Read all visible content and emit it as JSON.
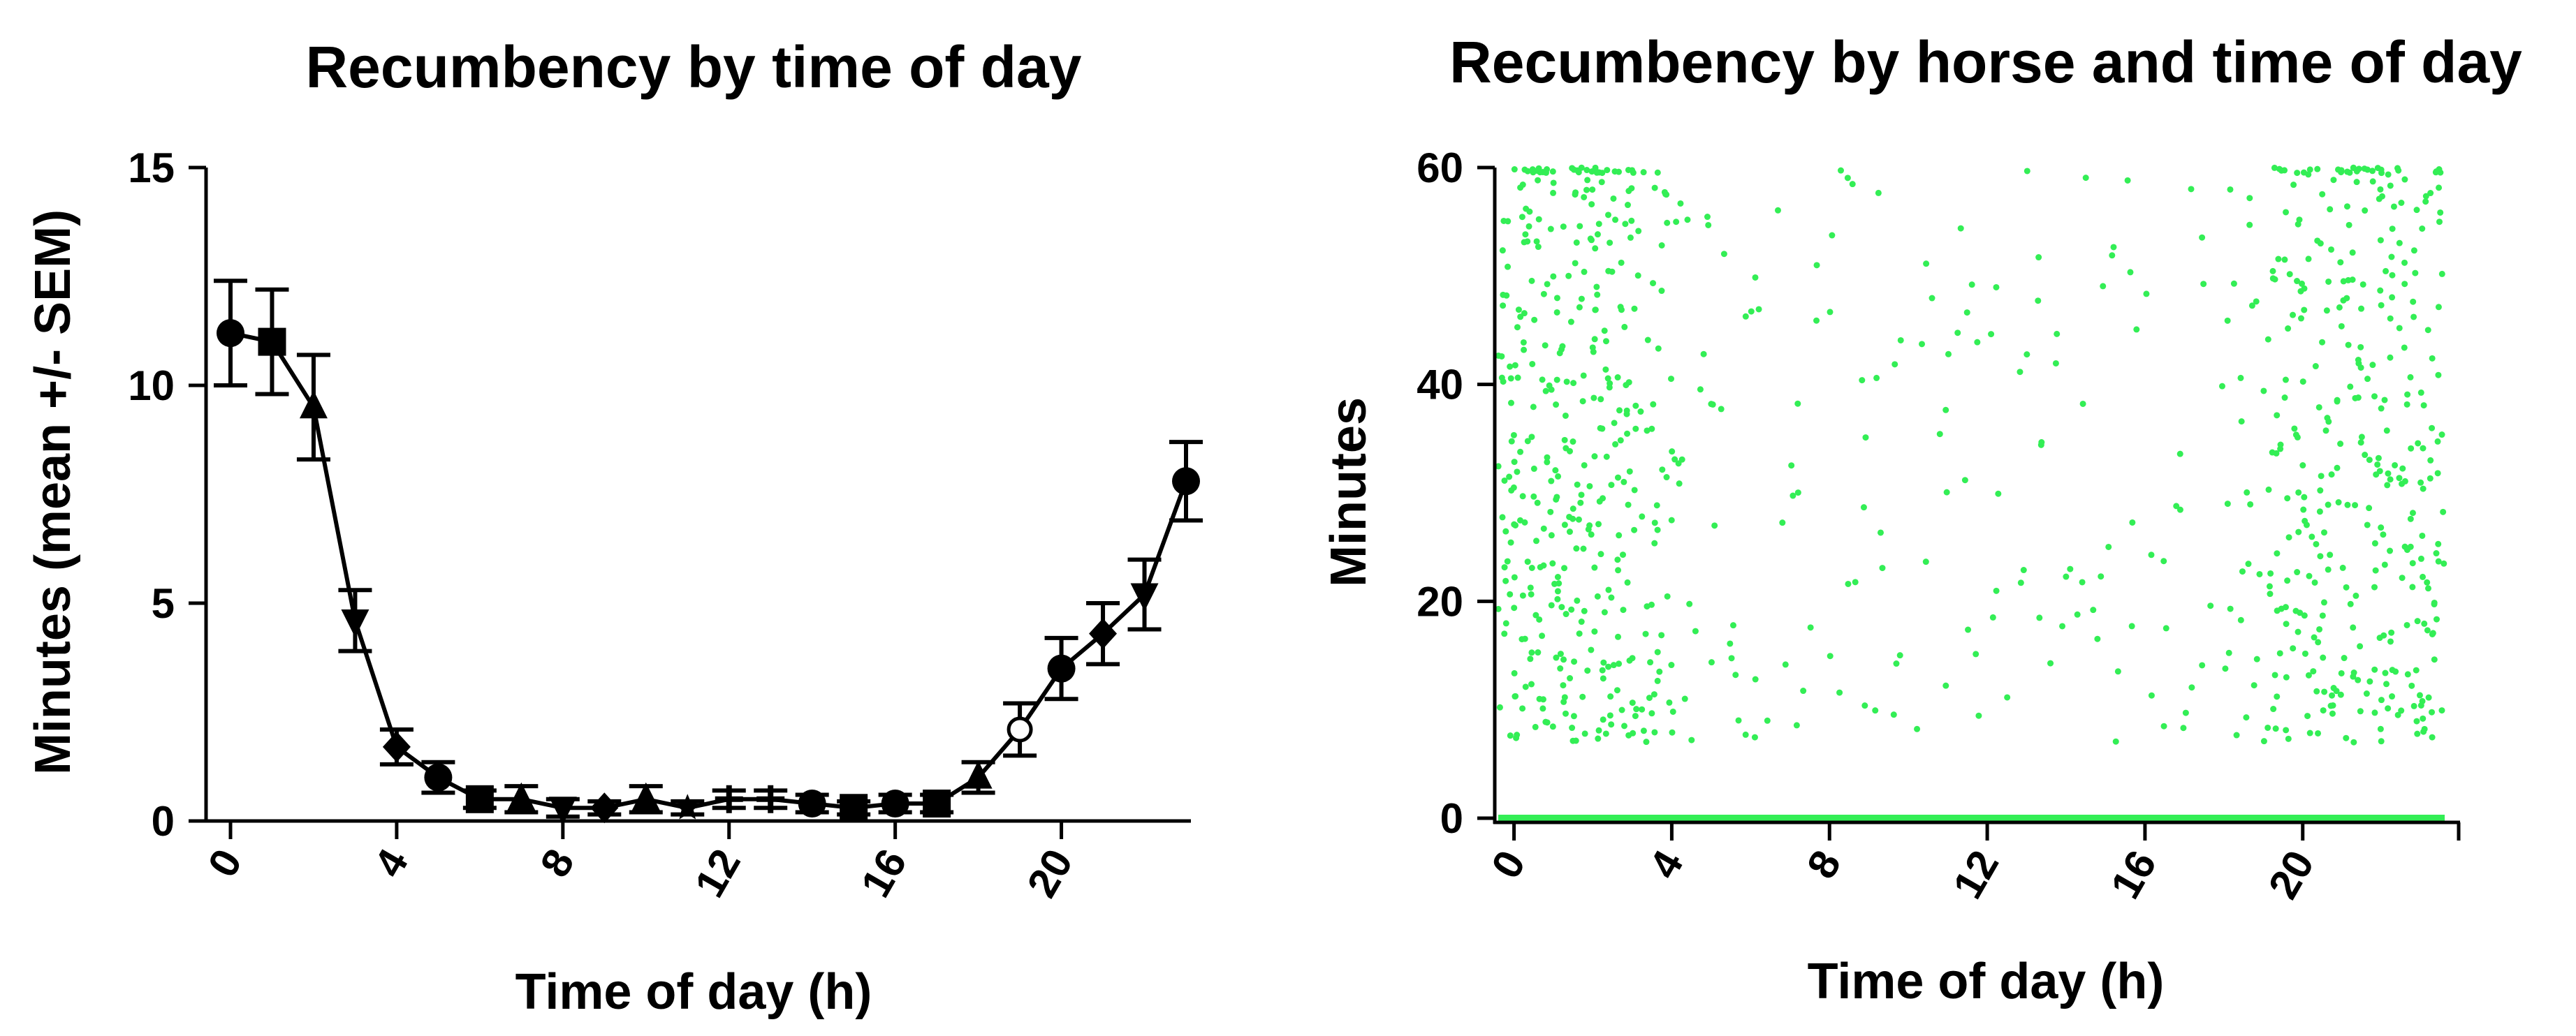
{
  "colors": {
    "ink": "#000000",
    "scatter": "#33ee55",
    "background": "#ffffff"
  },
  "chart_data": [
    {
      "type": "line",
      "title": "Recumbency by time of day",
      "xlabel": "Time of day (h)",
      "ylabel": "Minutes (mean +/- SEM)",
      "xlim": [
        0,
        23
      ],
      "ylim": [
        0,
        15
      ],
      "xticks": [
        0,
        4,
        8,
        12,
        16,
        20
      ],
      "yticks": [
        0,
        5,
        10,
        15
      ],
      "x": [
        0,
        1,
        2,
        3,
        4,
        5,
        6,
        7,
        8,
        9,
        10,
        11,
        12,
        13,
        14,
        15,
        16,
        17,
        18,
        19,
        20,
        21,
        22,
        23
      ],
      "values": [
        11.2,
        11.0,
        9.5,
        4.6,
        1.7,
        1.0,
        0.5,
        0.5,
        0.3,
        0.3,
        0.5,
        0.3,
        0.5,
        0.5,
        0.4,
        0.3,
        0.4,
        0.4,
        1.0,
        2.1,
        3.5,
        4.3,
        5.2,
        7.8
      ],
      "sem": [
        1.2,
        1.2,
        1.2,
        0.7,
        0.4,
        0.35,
        0.2,
        0.3,
        0.2,
        0.15,
        0.3,
        0.15,
        0.2,
        0.2,
        0.2,
        0.15,
        0.2,
        0.2,
        0.35,
        0.6,
        0.7,
        0.7,
        0.8,
        0.9
      ],
      "markers": [
        "circle",
        "square",
        "triangle-up",
        "triangle-down",
        "diamond",
        "circle",
        "square",
        "triangle-up",
        "triangle-down",
        "diamond",
        "triangle-up",
        "star",
        "plus",
        "plus",
        "circle",
        "square",
        "circle",
        "square",
        "triangle-up",
        "circle-open",
        "circle",
        "diamond",
        "triangle-down",
        "circle"
      ]
    },
    {
      "type": "scatter",
      "title": "Recumbency by horse and time of day",
      "xlabel": "Time of day (h)",
      "ylabel": "Minutes",
      "xlim": [
        -0.4,
        23.6
      ],
      "ylim": [
        0,
        60
      ],
      "xticks": [
        0,
        4,
        8,
        12,
        16,
        20
      ],
      "yticks": [
        0,
        20,
        40,
        60
      ],
      "note": "Individual recumbency bouts per horse; dense at 0-4 h and 19-23.5 h, sparse 5-18 h, baseline row of zero values"
    }
  ]
}
